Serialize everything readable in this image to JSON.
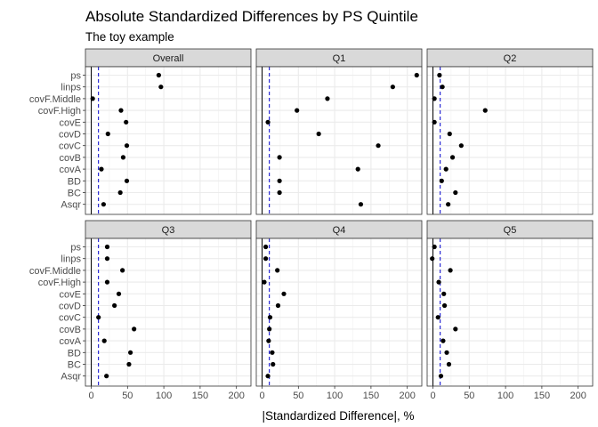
{
  "chart_data": {
    "type": "scatter",
    "title": "Absolute Standardized Differences by PS Quintile",
    "subtitle": "The toy example",
    "xlabel": "|Standardized Difference|, %",
    "ylabel": "",
    "xlim": [
      -8,
      220
    ],
    "x_ticks": [
      0,
      50,
      100,
      150,
      200
    ],
    "reference_line": 0,
    "threshold_line": 10,
    "threshold_color": "#0000cc",
    "grid": true,
    "categories": [
      "ps",
      "linps",
      "covF.Middle",
      "covF.High",
      "covE",
      "covD",
      "covC",
      "covB",
      "covA",
      "BD",
      "BC",
      "Asqr"
    ],
    "panels": [
      {
        "name": "Overall",
        "values": [
          93,
          96,
          2,
          41,
          48,
          23,
          49,
          44,
          14,
          49,
          40,
          17
        ]
      },
      {
        "name": "Q1",
        "values": [
          213,
          180,
          90,
          48,
          8,
          78,
          160,
          24,
          132,
          24,
          24,
          136
        ]
      },
      {
        "name": "Q2",
        "values": [
          9,
          13,
          2,
          72,
          2,
          23,
          39,
          27,
          18,
          12,
          31,
          21
        ]
      },
      {
        "name": "Q3",
        "values": [
          22,
          22,
          43,
          22,
          38,
          32,
          10,
          59,
          18,
          54,
          52,
          21
        ]
      },
      {
        "name": "Q4",
        "values": [
          5,
          5,
          21,
          3,
          30,
          22,
          11,
          10,
          9,
          14,
          15,
          8
        ]
      },
      {
        "name": "Q5",
        "values": [
          2,
          -1,
          24,
          8,
          15,
          16,
          7,
          31,
          14,
          19,
          22,
          11
        ]
      }
    ]
  }
}
